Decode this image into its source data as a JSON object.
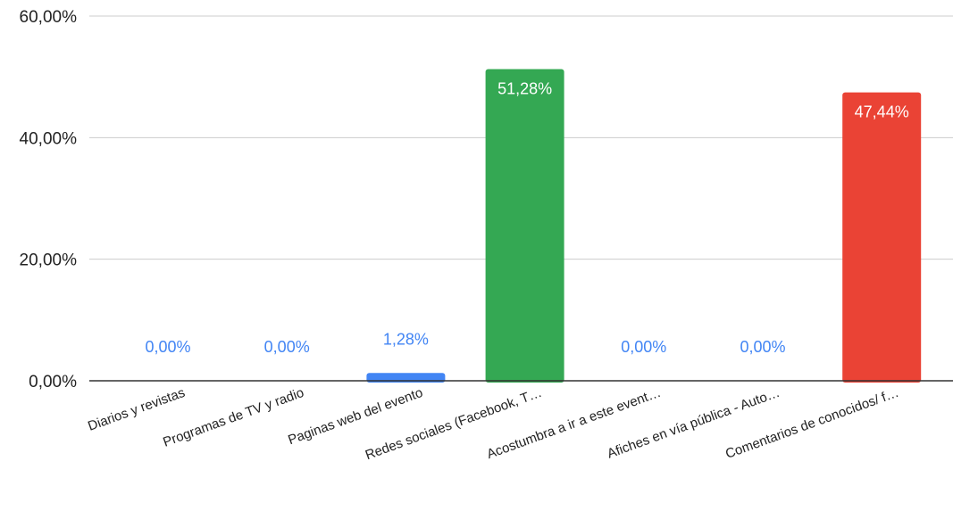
{
  "chart_data": {
    "type": "bar",
    "title": "",
    "xlabel": "",
    "ylabel": "",
    "ylim": [
      0,
      60
    ],
    "yticks": [
      {
        "value": 0,
        "label": "0,00%"
      },
      {
        "value": 20,
        "label": "20,00%"
      },
      {
        "value": 40,
        "label": "40,00%"
      },
      {
        "value": 60,
        "label": "60,00%"
      }
    ],
    "grid": true,
    "categories": [
      "Diarios y revistas",
      "Programas de TV y radio",
      "Paginas web del evento",
      "Redes sociales (Facebook, T…",
      "Acostumbra a ir a este event…",
      "Afiches en vía pública - Auto…",
      "Comentarios de conocidos/ f…"
    ],
    "values": [
      0,
      0,
      1.28,
      51.28,
      0,
      0,
      47.44
    ],
    "data_labels": [
      "0,00%",
      "0,00%",
      "1,28%",
      "51,28%",
      "0,00%",
      "0,00%",
      "47,44%"
    ],
    "colors": [
      "#4285f4",
      "#4285f4",
      "#4285f4",
      "#34a853",
      "#4285f4",
      "#4285f4",
      "#ea4335"
    ],
    "outside_label_color": "#4285f4",
    "inside_label_color": "#ffffff",
    "gridline_color": "#cccccc",
    "axis_color": "#333333"
  }
}
